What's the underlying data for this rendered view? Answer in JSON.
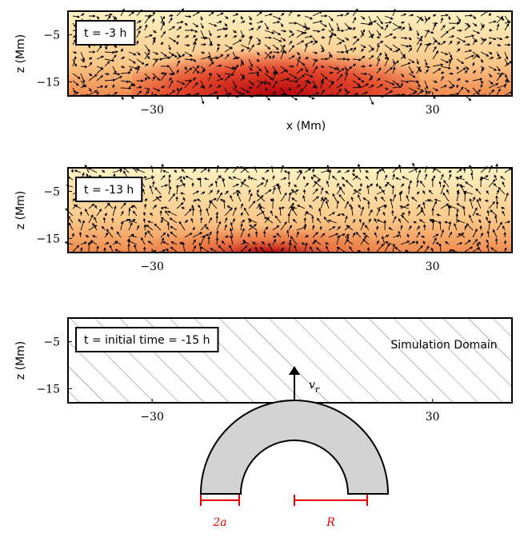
{
  "chart_data": [
    {
      "type": "heatmap",
      "label": "t = -3 h",
      "xlabel": "x (Mm)",
      "ylabel": "z (Mm)",
      "xlim": [
        -48,
        47
      ],
      "ylim": [
        -18,
        0
      ],
      "xticks": [
        {
          "value": -30,
          "label": "−30"
        },
        30
      ],
      "yticks": [
        {
          "value": -5,
          "label": "−5"
        },
        {
          "value": -15,
          "label": "−15"
        }
      ]
    },
    {
      "type": "heatmap",
      "label": "t = -13 h",
      "ylabel": "z (Mm)",
      "xlim": [
        -48,
        47
      ],
      "ylim": [
        -18,
        0
      ],
      "xticks": [
        {
          "value": -30,
          "label": "−30"
        },
        30
      ],
      "yticks": [
        {
          "value": -5,
          "label": "−5"
        },
        {
          "value": -15,
          "label": "−15"
        }
      ]
    },
    {
      "type": "schematic",
      "label": "t = initial time = -15 h",
      "ylabel": "z (Mm)",
      "xlim": [
        -48,
        47
      ],
      "ylim": [
        -18,
        0
      ],
      "xticks": [
        {
          "value": -30,
          "label": "−30"
        },
        30
      ],
      "yticks": [
        {
          "value": -5,
          "label": "−5"
        },
        {
          "value": -15,
          "label": "−15"
        }
      ],
      "domain_label": "Simulation Domain",
      "velocity_label": "v",
      "velocity_subscript": "r",
      "width_label": "2a",
      "radius_label": "R"
    }
  ]
}
